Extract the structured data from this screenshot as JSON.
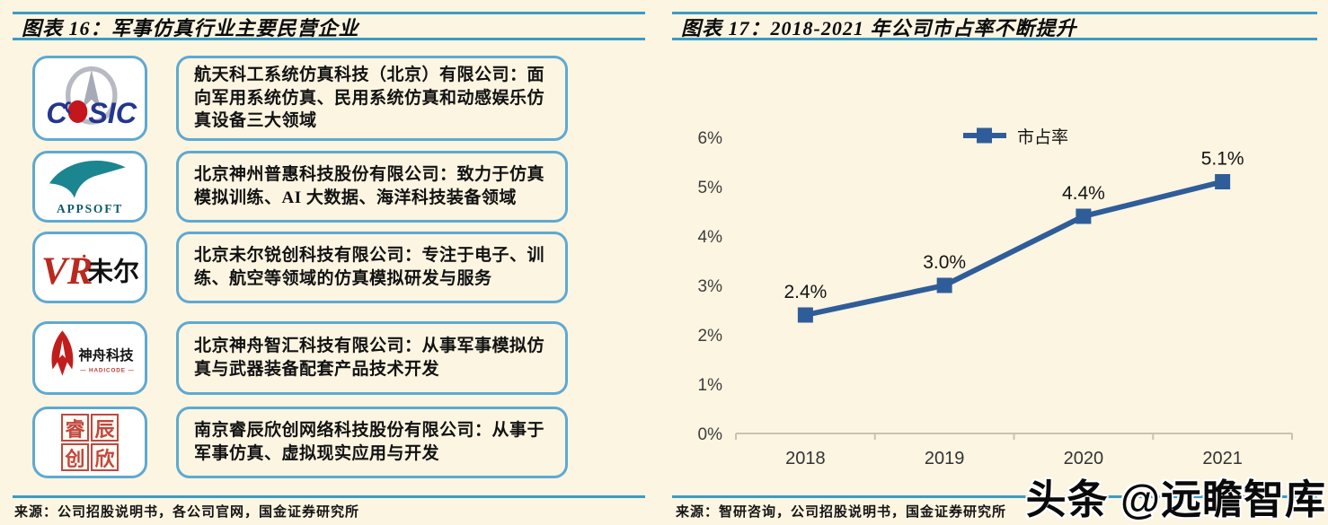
{
  "page": {
    "background": "#FBF5E1",
    "rule_color": "#3B9CC4",
    "box_border_color": "#5EA9D2"
  },
  "watermark": {
    "text": "头条 @远瞻智库"
  },
  "left_panel": {
    "title": "图表 16：军事仿真行业主要民营企业",
    "source": "来源：公司招股说明书，各公司官网，国金证券研究所",
    "companies": [
      {
        "logo": {
          "c": "C",
          "sic": "SIC"
        },
        "desc": "航天科工系统仿真科技（北京）有限公司：面向军用系统仿真、民用系统仿真和动感娱乐仿真设备三大领域"
      },
      {
        "logo": {
          "text": "APPSOFT"
        },
        "desc": "北京神州普惠科技股份有限公司：致力于仿真模拟训练、AI 大数据、海洋科技装备领域"
      },
      {
        "logo": {
          "vr": "VR",
          "cn": "未尔"
        },
        "desc": "北京未尔锐创科技有限公司：专注于电子、训练、航空等领域的仿真模拟研发与服务"
      },
      {
        "logo": {
          "cn": "神舟科技",
          "en": "— HADICODE —"
        },
        "desc": "北京神舟智汇科技有限公司：从事军事模拟仿真与武器装备配套产品技术开发"
      },
      {
        "logo": {
          "chars": [
            "睿",
            "辰",
            "创",
            "欣"
          ]
        },
        "desc": "南京睿辰欣创网络科技股份有限公司：从事于军事仿真、虚拟现实应用与开发"
      }
    ]
  },
  "right_panel": {
    "title": "图表 17：2018-2021 年公司市占率不断提升",
    "source": "来源：智研咨询，公司招股说明书，国金证券研究所",
    "chart_data": {
      "type": "line",
      "title": "2018-2021 年公司市占率不断提升",
      "categories": [
        "2018",
        "2019",
        "2020",
        "2021"
      ],
      "series": [
        {
          "name": "市占率",
          "values": [
            2.4,
            3.0,
            4.4,
            5.1
          ],
          "color": "#2F5D99"
        }
      ],
      "data_labels": [
        "2.4%",
        "3.0%",
        "4.4%",
        "5.1%"
      ],
      "xlabel": "",
      "ylabel": "",
      "ylim": [
        0,
        6
      ],
      "ytick_labels": [
        "0%",
        "1%",
        "2%",
        "3%",
        "4%",
        "5%",
        "6%"
      ],
      "legend": {
        "position": "top",
        "entries": [
          "市占率"
        ]
      },
      "grid": false,
      "marker": "square"
    }
  }
}
